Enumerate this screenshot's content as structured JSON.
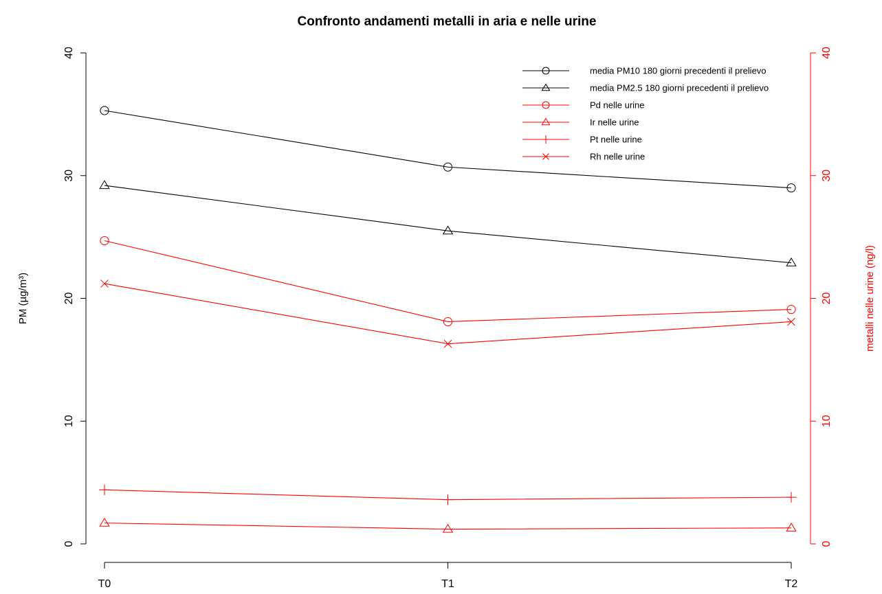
{
  "chart_data": {
    "type": "line",
    "title": "Confronto andamenti metalli in aria e nelle urine",
    "categories": [
      "T0",
      "T1",
      "T2"
    ],
    "ylabel_left": "PM (µg/m³)",
    "ylabel_right": "metalli nelle urine (ng/l)",
    "ylim_left": [
      0,
      40
    ],
    "ylim_right": [
      0,
      40
    ],
    "yticks_left": [
      0,
      10,
      20,
      30,
      40
    ],
    "yticks_right": [
      0,
      10,
      20,
      30,
      40
    ],
    "grid": false,
    "legend_position": "top-right",
    "colors": {
      "air": "#000000",
      "urine": "#ff0000"
    },
    "series": [
      {
        "name": "media PM10 180 giorni precedenti il prelievo",
        "values": [
          35.3,
          30.7,
          29.0
        ],
        "axis": "left",
        "color": "#000000",
        "marker": "circle"
      },
      {
        "name": "media PM2.5 180 giorni precedenti il prelievo",
        "values": [
          29.2,
          25.5,
          22.9
        ],
        "axis": "left",
        "color": "#000000",
        "marker": "triangle"
      },
      {
        "name": "Pd nelle urine",
        "values": [
          24.7,
          18.1,
          19.1
        ],
        "axis": "right",
        "color": "#ff0000",
        "marker": "circle"
      },
      {
        "name": "Ir nelle urine",
        "values": [
          1.7,
          1.2,
          1.3
        ],
        "axis": "right",
        "color": "#ff0000",
        "marker": "triangle"
      },
      {
        "name": "Pt nelle urine",
        "values": [
          4.4,
          3.6,
          3.8
        ],
        "axis": "right",
        "color": "#ff0000",
        "marker": "plus"
      },
      {
        "name": "Rh nelle urine",
        "values": [
          21.2,
          16.3,
          18.1
        ],
        "axis": "right",
        "color": "#ff0000",
        "marker": "cross"
      }
    ]
  }
}
